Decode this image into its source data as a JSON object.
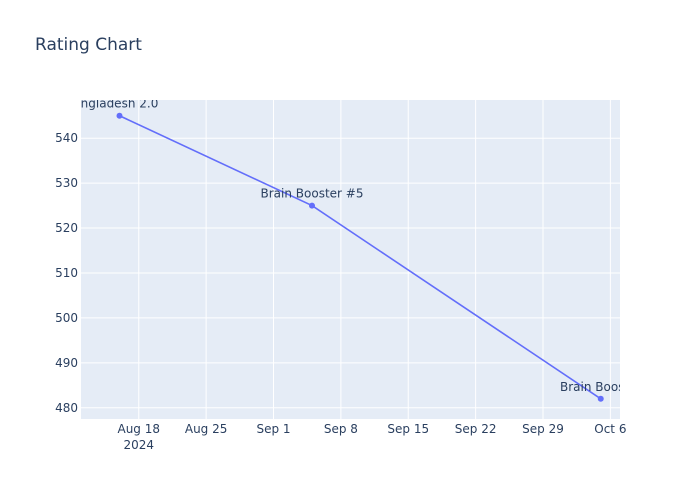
{
  "chart_data": {
    "type": "line",
    "title": "Rating Chart",
    "xlabel": "",
    "ylabel": "",
    "x_axis_type": "date",
    "xlim": [
      "2024-08-12",
      "2024-10-07"
    ],
    "ylim": [
      477.5,
      548.5
    ],
    "x_ticks": [
      {
        "date": "2024-08-18",
        "label": "Aug 18",
        "sublabel": "2024"
      },
      {
        "date": "2024-08-25",
        "label": "Aug 25"
      },
      {
        "date": "2024-09-01",
        "label": "Sep 1"
      },
      {
        "date": "2024-09-08",
        "label": "Sep 8"
      },
      {
        "date": "2024-09-15",
        "label": "Sep 15"
      },
      {
        "date": "2024-09-22",
        "label": "Sep 22"
      },
      {
        "date": "2024-09-29",
        "label": "Sep 29"
      },
      {
        "date": "2024-10-06",
        "label": "Oct 6"
      }
    ],
    "y_ticks": [
      480,
      490,
      500,
      510,
      520,
      530,
      540
    ],
    "grid": true,
    "colors": {
      "line": "#636efa",
      "plot_bg": "#e5ecf6",
      "grid": "#ffffff",
      "text": "#2a3f5f"
    },
    "series": [
      {
        "points": [
          {
            "x": "2024-08-16",
            "y": 545,
            "label": "ngladesh 2.0"
          },
          {
            "x": "2024-09-05",
            "y": 525,
            "label": "Brain Booster #5"
          },
          {
            "x": "2024-10-05",
            "y": 482,
            "label": "Brain Booster"
          }
        ]
      }
    ]
  }
}
